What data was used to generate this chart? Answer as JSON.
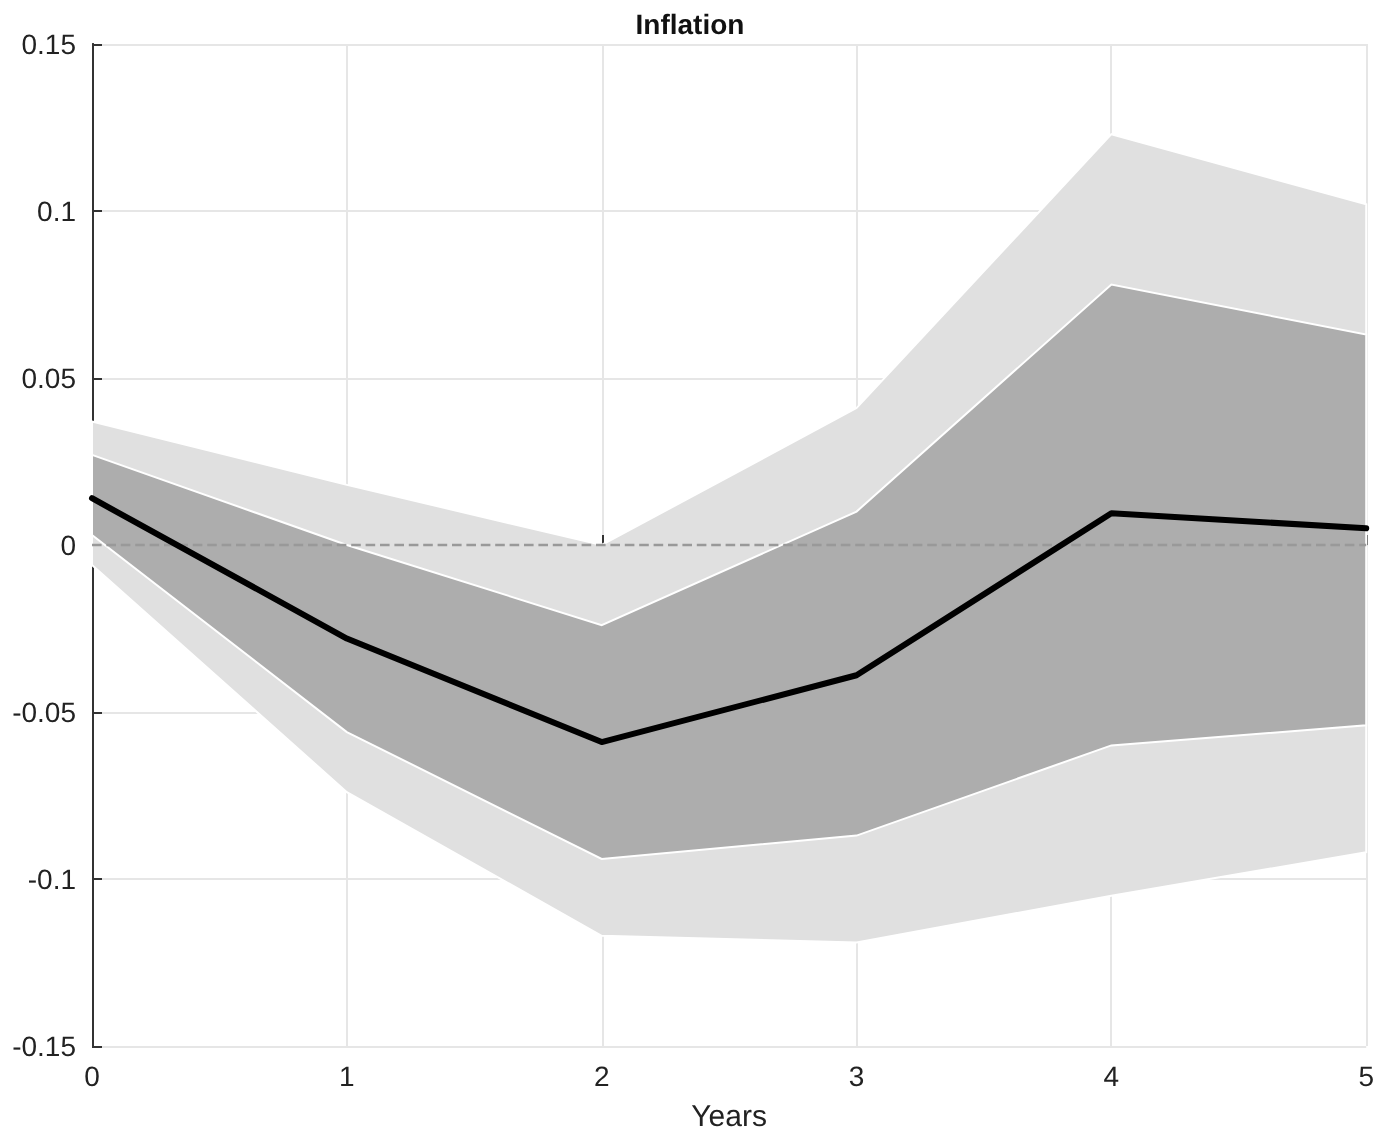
{
  "chart_data": {
    "type": "line",
    "title": "Inflation",
    "xlabel": "Years",
    "x": [
      0,
      1,
      2,
      3,
      4,
      5
    ],
    "series": [
      {
        "color": "#e0e0e0",
        "values": [
          null,
          null,
          null,
          null,
          null,
          null
        ],
        "lower": [
          -0.006,
          -0.074,
          -0.117,
          -0.119,
          -0.105,
          -0.092
        ],
        "upper": [
          0.037,
          0.018,
          0,
          0.041,
          0.123,
          0.102
        ]
      },
      {
        "color": "#adadad",
        "values": [
          null,
          null,
          null,
          null,
          null,
          null
        ],
        "lower": [
          0.003,
          -0.056,
          -0.094,
          -0.087,
          -0.06,
          -0.054
        ],
        "upper": [
          0.027,
          0,
          -0.024,
          0.01,
          0.078,
          0.063
        ]
      },
      {
        "color": "#000000",
        "values": [
          0.014,
          -0.028,
          -0.059,
          -0.039,
          0.0095,
          0.005
        ]
      }
    ],
    "xlim": [
      0,
      5
    ],
    "xticks": [
      0,
      1,
      2,
      3,
      4,
      5
    ],
    "ylim": [
      -0.15,
      0.15
    ],
    "yticks": [
      -0.15,
      -0.1,
      -0.05,
      0,
      0.05,
      0.1,
      0.15
    ],
    "ref_lines": [
      {
        "axis": "y",
        "value": 0,
        "color": "#999999",
        "line_style": "dashed"
      }
    ],
    "grid": true,
    "line_style": "solid",
    "marker": "none"
  }
}
